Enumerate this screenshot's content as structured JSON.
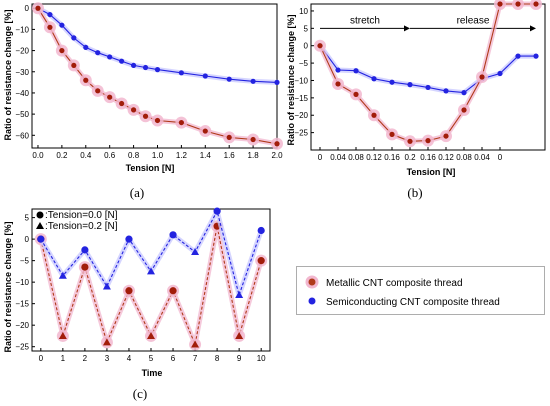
{
  "colors": {
    "metallic": "#b03a1a",
    "metallic_halo": "#f2b7cf",
    "semiconducting": "#2323e0",
    "semiconducting_halo": "#c7c7ff",
    "red_marker": "#a21d0a"
  },
  "legend": {
    "metallic": "Metallic CNT composite thread",
    "semiconducting": "Semiconducting CNT composite thread"
  },
  "chart_data": [
    {
      "id": "a",
      "type": "line",
      "panel_label": "(a)",
      "xlabel": "Tension [N]",
      "ylabel": "Ratio of resistance change [%]",
      "xlim": [
        -0.05,
        2.0
      ],
      "ylim": [
        -66,
        2
      ],
      "xticks": [
        0.0,
        0.2,
        0.4,
        0.6,
        0.8,
        1.0,
        1.2,
        1.4,
        1.6,
        1.8,
        2.0
      ],
      "xtick_labels": [
        "0.0",
        "0.2",
        "0.4",
        "0.6",
        "0.8",
        "1.0",
        "1.2",
        "1.4",
        "1.6",
        "1.8",
        "2.0"
      ],
      "yticks": [
        0,
        -10,
        -20,
        -30,
        -40,
        -50,
        -60
      ],
      "ytick_labels": [
        "0",
        "−10",
        "−20",
        "−30",
        "−40",
        "−50",
        "−60"
      ],
      "series": [
        {
          "key": "semiconducting",
          "x": [
            0.0,
            0.1,
            0.2,
            0.3,
            0.4,
            0.5,
            0.6,
            0.7,
            0.8,
            0.9,
            1.0,
            1.2,
            1.4,
            1.6,
            1.8,
            2.0
          ],
          "values": [
            0,
            -3,
            -8,
            -14,
            -18.5,
            -21,
            -23,
            -25,
            -27,
            -28,
            -29,
            -30.5,
            -32,
            -33.5,
            -34.5,
            -35
          ]
        },
        {
          "key": "metallic",
          "x": [
            0.0,
            0.1,
            0.2,
            0.3,
            0.4,
            0.5,
            0.6,
            0.7,
            0.8,
            0.9,
            1.0,
            1.2,
            1.4,
            1.6,
            1.8,
            2.0
          ],
          "values": [
            0,
            -9,
            -20,
            -27,
            -34,
            -39,
            -42,
            -45,
            -48,
            -51,
            -53,
            -54,
            -58,
            -61,
            -62,
            -64
          ]
        }
      ]
    },
    {
      "id": "b",
      "type": "line",
      "panel_label": "(b)",
      "xlabel": "Tension [N]",
      "ylabel": "Ratio of resistance change [%]",
      "xlim": [
        -0.5,
        12.5
      ],
      "ylim": [
        -30,
        12
      ],
      "xtick_labels": [
        "0",
        "0.04",
        "0.08",
        "0.12",
        "0.16",
        "0.2",
        "0.16",
        "0.12",
        "0.08",
        "0.04",
        "0"
      ],
      "yticks": [
        10,
        5,
        0,
        -5,
        -10,
        -15,
        -20,
        -25
      ],
      "ytick_labels": [
        "10",
        "5",
        "0",
        "−5",
        "−10",
        "−15",
        "−20",
        "−25"
      ],
      "annotations": [
        "stretch",
        "release"
      ],
      "series": [
        {
          "key": "semiconducting",
          "x": [
            0,
            1,
            2,
            3,
            4,
            5,
            6,
            7,
            8,
            9,
            10,
            11,
            12
          ],
          "values": [
            0,
            -7,
            -7.2,
            -9.5,
            -10.5,
            -11.2,
            -12,
            -13,
            -13.5,
            -9.5,
            -8,
            -3,
            -3
          ]
        },
        {
          "key": "metallic",
          "x": [
            0,
            1,
            2,
            3,
            4,
            5,
            6,
            7,
            8,
            9,
            10,
            11,
            12
          ],
          "values": [
            0,
            -11,
            -14,
            -20,
            -25.5,
            -27.5,
            -27.3,
            -26,
            -18.5,
            -9,
            12,
            12,
            12
          ]
        }
      ]
    },
    {
      "id": "c",
      "type": "line",
      "panel_label": "(c)",
      "xlabel": "Time",
      "ylabel": "Ratio of resistance change [%]",
      "xlim": [
        -0.4,
        10.4
      ],
      "ylim": [
        -26,
        7
      ],
      "xticks": [
        0,
        1,
        2,
        3,
        4,
        5,
        6,
        7,
        8,
        9,
        10
      ],
      "xtick_labels": [
        "0",
        "1",
        "2",
        "3",
        "4",
        "5",
        "6",
        "7",
        "8",
        "9",
        "10"
      ],
      "yticks": [
        5,
        0,
        -5,
        -10,
        -15,
        -20,
        -25
      ],
      "ytick_labels": [
        "5",
        "0",
        "−5",
        "−10",
        "−15",
        "−20",
        "−25"
      ],
      "marker_legend": [
        {
          "marker": "circle",
          "label": ":Tension=0.0 [N]"
        },
        {
          "marker": "triangle",
          "label": ":Tension=0.2 [N]"
        }
      ],
      "series": [
        {
          "key": "metallic",
          "x": [
            0,
            1,
            2,
            3,
            4,
            5,
            6,
            7,
            8,
            9,
            10
          ],
          "values": [
            0,
            -22.5,
            -6.5,
            -24,
            -12,
            -22.5,
            -12,
            -24.5,
            3,
            -22.5,
            -5
          ],
          "markers": [
            "circle",
            "triangle",
            "circle",
            "triangle",
            "circle",
            "triangle",
            "circle",
            "triangle",
            "circle",
            "triangle",
            "circle"
          ]
        },
        {
          "key": "semiconducting",
          "x": [
            0,
            1,
            2,
            3,
            4,
            5,
            6,
            7,
            8,
            9,
            10
          ],
          "values": [
            0,
            -8.5,
            -2.5,
            -11,
            0,
            -7.5,
            1,
            -3,
            6.5,
            -13,
            2
          ],
          "markers": [
            "circle",
            "triangle",
            "circle",
            "triangle",
            "circle",
            "triangle",
            "circle",
            "triangle",
            "circle",
            "triangle",
            "circle"
          ]
        }
      ]
    }
  ]
}
